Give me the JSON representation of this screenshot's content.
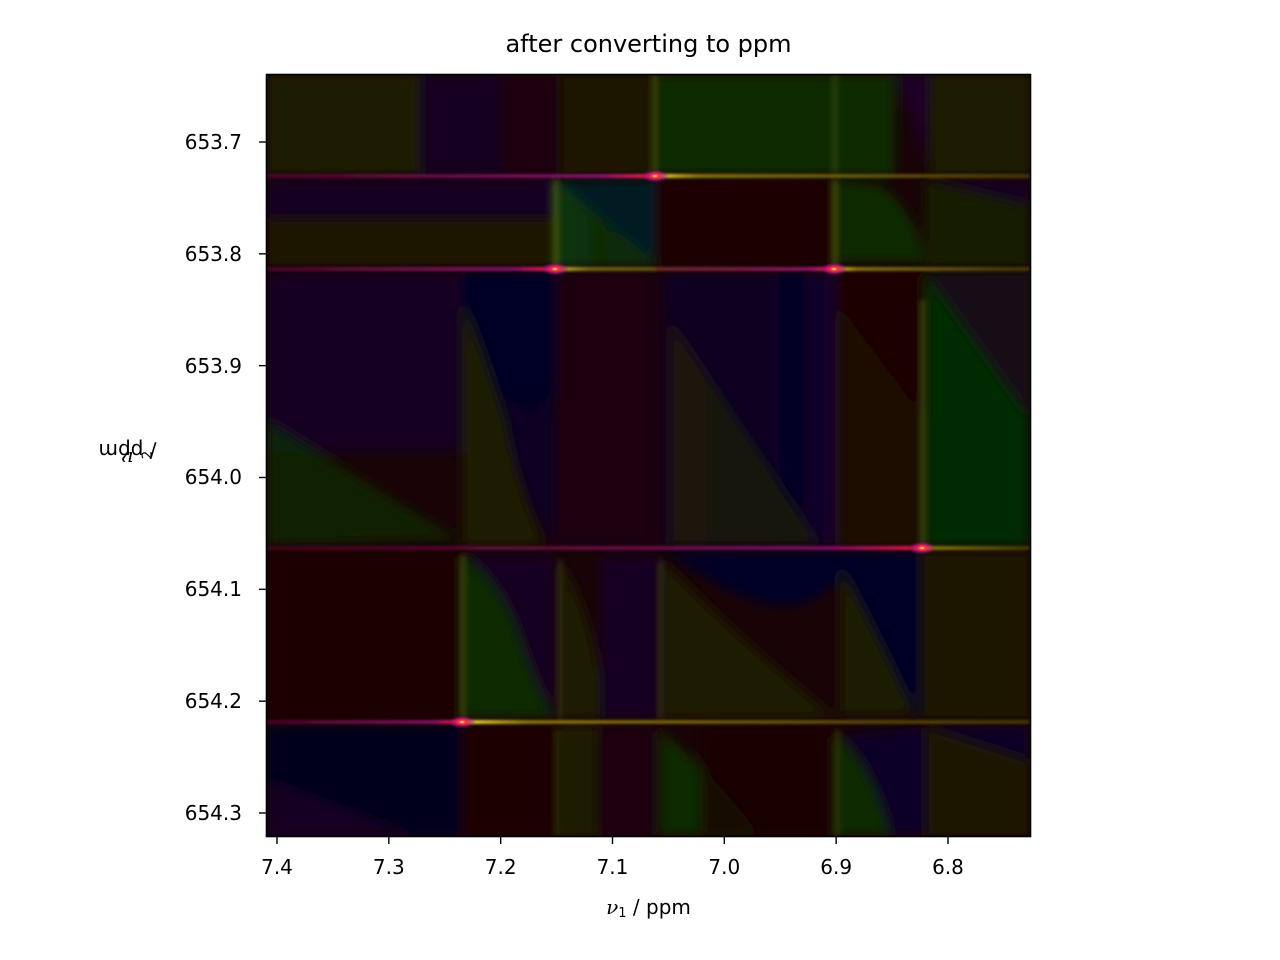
{
  "chart_data": {
    "type": "heatmap",
    "title": "after converting to ppm",
    "xlabel": "ν1 / ppm",
    "ylabel": "ν2 / ppm",
    "xlabel_parts": {
      "symbol": "ν",
      "sub": "1",
      "unit": " / ppm"
    },
    "ylabel_parts": {
      "symbol": "ν",
      "sub": "2",
      "unit": " / ppm"
    },
    "xlim": [
      7.41,
      6.725
    ],
    "ylim": [
      654.32,
      653.64
    ],
    "x_inverted": true,
    "y_inverted": true,
    "grid": false,
    "colormap": "phase (hue = phase, brightness = magnitude), dark background",
    "xticks": [
      {
        "value": 7.4,
        "label": "7.4"
      },
      {
        "value": 7.3,
        "label": "7.3"
      },
      {
        "value": 7.2,
        "label": "7.2"
      },
      {
        "value": 7.1,
        "label": "7.1"
      },
      {
        "value": 7.0,
        "label": "7.0"
      },
      {
        "value": 6.9,
        "label": "6.9"
      },
      {
        "value": 6.8,
        "label": "6.8"
      }
    ],
    "yticks": [
      {
        "value": 653.7,
        "label": "653.7"
      },
      {
        "value": 653.8,
        "label": "653.8"
      },
      {
        "value": 653.9,
        "label": "653.9"
      },
      {
        "value": 654.0,
        "label": "654.0"
      },
      {
        "value": 654.1,
        "label": "654.1"
      },
      {
        "value": 654.2,
        "label": "654.2"
      },
      {
        "value": 654.3,
        "label": "654.3"
      }
    ],
    "peak_rows_nu2_ppm": [
      653.73,
      653.813,
      654.063,
      654.22
    ],
    "peak_columns_nu1_ppm": [
      7.234,
      7.151,
      7.061,
      6.901,
      6.822
    ],
    "peaks": [
      {
        "nu1": 7.061,
        "nu2": 653.73
      },
      {
        "nu1": 7.151,
        "nu2": 653.813
      },
      {
        "nu1": 6.901,
        "nu2": 653.813
      },
      {
        "nu1": 6.822,
        "nu2": 654.063
      },
      {
        "nu1": 7.234,
        "nu2": 654.22
      }
    ]
  },
  "colors": {
    "background": "#ffffff",
    "plot_base": "#1a0306",
    "peak_core": "#ff2030",
    "peak_halo": "#ffe040",
    "green_region": "#0a2a05",
    "blue_region": "#05052a",
    "purple_region": "#1c0524",
    "olive_region": "#1e1c05"
  }
}
